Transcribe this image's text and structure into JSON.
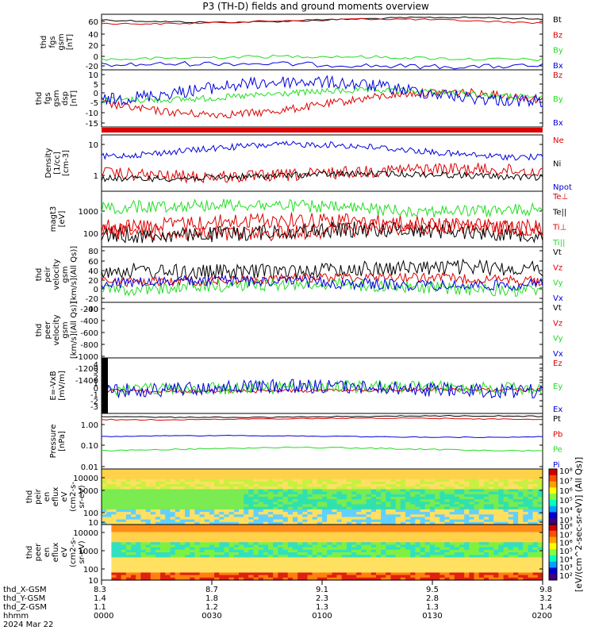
{
  "title": "P3 (TH-D) fields and ground moments overview",
  "colors": {
    "black": "#000000",
    "red": "#dd0000",
    "green": "#22dd22",
    "blue": "#0000dd",
    "magenta": "#cc00cc"
  },
  "footer": {
    "rows": [
      {
        "label": "thd_X-GSM",
        "values": [
          "8.3",
          "8.7",
          "9.1",
          "9.5",
          "9.8"
        ]
      },
      {
        "label": "thd_Y-GSM",
        "values": [
          "1.4",
          "1.8",
          "2.3",
          "2.8",
          "3.2"
        ]
      },
      {
        "label": "thd_Z-GSM",
        "values": [
          "1.1",
          "1.2",
          "1.3",
          "1.3",
          "1.4"
        ]
      },
      {
        "label": "hhmm",
        "values": [
          "0000",
          "0030",
          "0100",
          "0130",
          "0200"
        ]
      }
    ],
    "date": "2024 Mar 22"
  },
  "colorbar_label": "[eV/(cm^2-sec-sr-eV)] (All Qs)]",
  "chart_data": [
    {
      "type": "line",
      "ylabel": [
        "thd",
        "fgs",
        "gsm",
        "[nT]"
      ],
      "yticks": [
        "60",
        "40",
        "20",
        "0",
        "-20"
      ],
      "ylim": [
        -22,
        72
      ],
      "legend": [
        {
          "name": "Bt",
          "color": "black"
        },
        {
          "name": "Bz",
          "color": "red"
        },
        {
          "name": "By",
          "color": "green"
        },
        {
          "name": "Bx",
          "color": "blue"
        }
      ]
    },
    {
      "type": "line",
      "ylabel": [
        "thd",
        "fgs",
        "gsm",
        "dsp",
        "[nT]"
      ],
      "yticks": [
        "10",
        "5",
        "0",
        "-5",
        "-10",
        "-15"
      ],
      "ylim": [
        -18,
        12
      ],
      "legend": [
        {
          "name": "Bz",
          "color": "red"
        },
        {
          "name": "By",
          "color": "green"
        },
        {
          "name": "Bx",
          "color": "blue"
        }
      ]
    },
    {
      "type": "line",
      "ylabel": [
        "Density",
        "[1/cc]",
        "[cm-3]"
      ],
      "yticks": [
        "10",
        "1"
      ],
      "ylim": [
        0.3,
        60
      ],
      "legend": [
        {
          "name": "Ne",
          "color": "red"
        },
        {
          "name": "Ni",
          "color": "black"
        },
        {
          "name": "Npot",
          "color": "blue"
        }
      ]
    },
    {
      "type": "line",
      "ylabel": [
        "magt3",
        "[eV]"
      ],
      "yticks": [
        "1000",
        "100"
      ],
      "ylim": [
        40,
        5000
      ],
      "legend": [
        {
          "name": "Te⊥",
          "color": "red"
        },
        {
          "name": "Te||",
          "color": "black"
        },
        {
          "name": "Ti⊥",
          "color": "red"
        },
        {
          "name": "Ti||",
          "color": "green"
        }
      ]
    },
    {
      "type": "line",
      "ylabel": [
        "thd",
        "peir",
        "velocity",
        "gsm",
        "[km/s](All Qs)]"
      ],
      "yticks": [
        "80",
        "60",
        "40",
        "20",
        "0",
        "-20",
        "-40"
      ],
      "ylim": [
        -45,
        90
      ],
      "legend": [
        {
          "name": "Vt",
          "color": "black"
        },
        {
          "name": "Vz",
          "color": "red"
        },
        {
          "name": "Vy",
          "color": "green"
        },
        {
          "name": "Vx",
          "color": "blue"
        }
      ]
    },
    {
      "type": "line",
      "ylabel": [
        "thd",
        "peer",
        "velocity",
        "gsm",
        "[km/s](All Qs)]"
      ],
      "yticks": [
        "-200",
        "-400",
        "-600",
        "-800",
        "-1000",
        "-1200",
        "-1400"
      ],
      "ylim": [
        -1450,
        -100
      ],
      "legend": [
        {
          "name": "Vt",
          "color": "black"
        },
        {
          "name": "Vz",
          "color": "red"
        },
        {
          "name": "Vy",
          "color": "green"
        },
        {
          "name": "Vx",
          "color": "blue"
        }
      ]
    },
    {
      "type": "line",
      "ylabel": [
        "E=-VxB",
        "[mV/m]"
      ],
      "yticks": [
        "4",
        "3",
        "2",
        "1",
        "0",
        "-1",
        "-2",
        "-3"
      ],
      "ylim": [
        -3.4,
        4.3
      ],
      "legend": [
        {
          "name": "Ez",
          "color": "red"
        },
        {
          "name": "Ey",
          "color": "green"
        },
        {
          "name": "Ex",
          "color": "blue"
        }
      ]
    },
    {
      "type": "line",
      "ylabel": [
        "Pressure",
        "[nPa]"
      ],
      "yticks": [
        "1.00",
        "0.10",
        "0.01"
      ],
      "ylim": [
        0.006,
        1.6
      ],
      "legend": [
        {
          "name": "Pt",
          "color": "black"
        },
        {
          "name": "Pb",
          "color": "red"
        },
        {
          "name": "Pe",
          "color": "green"
        },
        {
          "name": "Pi",
          "color": "blue"
        }
      ]
    },
    {
      "type": "heatmap",
      "ylabel": [
        "thd",
        "peir",
        "en",
        "eflux",
        "eV",
        "(cm2-s-",
        "sr-eV)"
      ],
      "yticks": [
        "10000",
        "1000",
        "100",
        "10"
      ],
      "ylim": [
        5,
        20000
      ],
      "cbar_ticks": [
        "10⁸",
        "10⁷",
        "10⁶",
        "10⁵",
        "10⁴",
        "10³"
      ]
    },
    {
      "type": "heatmap",
      "ylabel": [
        "thd",
        "peer",
        "en",
        "eflux",
        "eV",
        "(cm2-s-",
        "sr-eV)"
      ],
      "yticks": [
        "10000",
        "1000",
        "100",
        "10"
      ],
      "ylim": [
        5,
        20000
      ],
      "cbar_ticks": [
        "10⁸",
        "10⁷",
        "10⁶",
        "10⁵",
        "10⁴",
        "10³",
        "10²"
      ]
    }
  ]
}
